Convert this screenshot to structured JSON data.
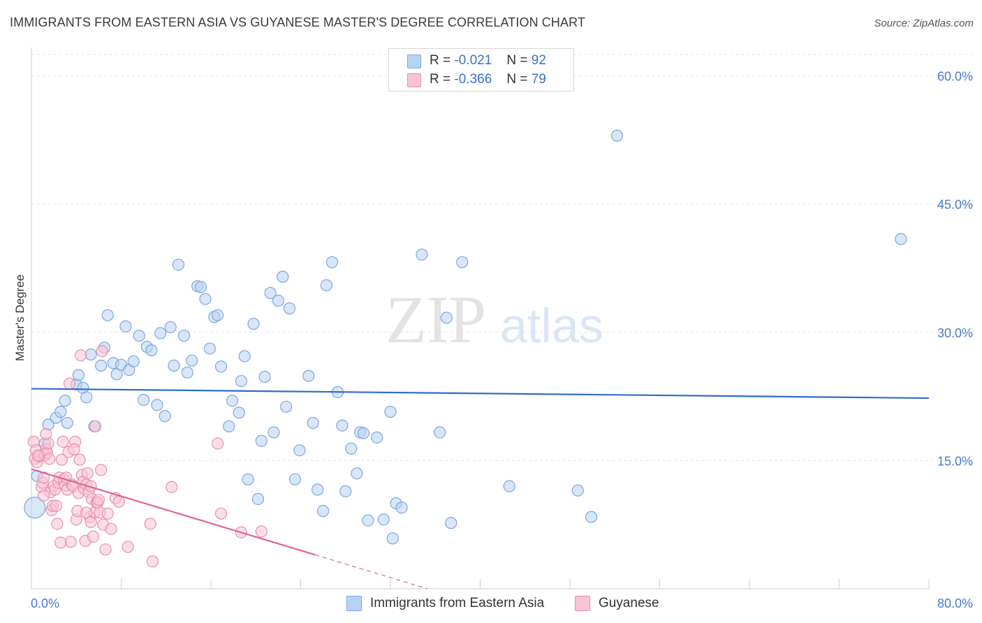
{
  "title": "IMMIGRANTS FROM EASTERN ASIA VS GUYANESE MASTER'S DEGREE CORRELATION CHART",
  "source": "Source: ZipAtlas.com",
  "watermark": {
    "zip": "ZIP",
    "atlas": "atlas"
  },
  "legend": {
    "rows": [
      {
        "r_label": "R =",
        "r_value": "-0.021",
        "n_label": "N =",
        "n_value": "92"
      },
      {
        "r_label": "R =",
        "r_value": "-0.366",
        "n_label": "N =",
        "n_value": "79"
      }
    ]
  },
  "bottom_legend": [
    "Immigrants from Eastern Asia",
    "Guyanese"
  ],
  "colors": {
    "blue_fill": "#b8d2f3",
    "blue_stroke": "#7ea7e0",
    "blue_line": "#2f6cc9",
    "pink_fill": "#f7c4d5",
    "pink_stroke": "#ea8fae",
    "pink_line": "#e0649a",
    "axis_text": "#4a7bd0",
    "grid": "#e6e6e6"
  },
  "chart_data": {
    "type": "scatter",
    "title": "IMMIGRANTS FROM EASTERN ASIA VS GUYANESE MASTER'S DEGREE CORRELATION CHART",
    "xlabel": "",
    "ylabel": "Master's Degree",
    "xlim": [
      0,
      80
    ],
    "ylim": [
      0,
      62.5
    ],
    "y_ticks": [
      15,
      30,
      45,
      60
    ],
    "y_tick_labels": [
      "15.0%",
      "30.0%",
      "45.0%",
      "60.0%"
    ],
    "x_tick_labels": [
      "0.0%",
      "80.0%"
    ],
    "grid": "horizontal dashed",
    "legend_position": "top-center",
    "series": [
      {
        "name": "Immigrants from Eastern Asia",
        "r": -0.021,
        "n": 92,
        "trend": {
          "x": [
            0,
            80
          ],
          "y": [
            23.4,
            22.3
          ],
          "solid_until": 80
        },
        "points": [
          [
            0.3,
            9.5
          ],
          [
            0.5,
            13.2
          ],
          [
            1.2,
            17.0
          ],
          [
            1.5,
            19.2
          ],
          [
            2.2,
            20.0
          ],
          [
            2.6,
            20.7
          ],
          [
            3.0,
            22.0
          ],
          [
            3.2,
            19.4
          ],
          [
            4.0,
            23.9
          ],
          [
            4.2,
            25.0
          ],
          [
            4.6,
            23.5
          ],
          [
            4.9,
            22.4
          ],
          [
            5.3,
            27.4
          ],
          [
            5.6,
            19.0
          ],
          [
            6.2,
            26.1
          ],
          [
            6.5,
            28.2
          ],
          [
            6.8,
            32.0
          ],
          [
            7.3,
            26.4
          ],
          [
            7.6,
            25.1
          ],
          [
            8.0,
            26.2
          ],
          [
            8.4,
            30.7
          ],
          [
            8.7,
            25.6
          ],
          [
            9.1,
            26.6
          ],
          [
            9.6,
            29.6
          ],
          [
            10.0,
            22.1
          ],
          [
            10.3,
            28.3
          ],
          [
            10.7,
            27.9
          ],
          [
            11.2,
            21.5
          ],
          [
            11.5,
            29.9
          ],
          [
            11.9,
            20.2
          ],
          [
            12.4,
            30.6
          ],
          [
            12.7,
            26.1
          ],
          [
            13.1,
            37.9
          ],
          [
            13.6,
            29.6
          ],
          [
            13.9,
            25.3
          ],
          [
            14.3,
            26.7
          ],
          [
            14.8,
            35.4
          ],
          [
            15.1,
            35.3
          ],
          [
            15.5,
            33.9
          ],
          [
            15.9,
            28.1
          ],
          [
            16.3,
            31.8
          ],
          [
            16.6,
            32.0
          ],
          [
            16.9,
            26.0
          ],
          [
            17.6,
            19.0
          ],
          [
            17.9,
            22.0
          ],
          [
            18.5,
            20.6
          ],
          [
            18.7,
            24.3
          ],
          [
            19.0,
            27.2
          ],
          [
            19.3,
            12.8
          ],
          [
            19.8,
            31.0
          ],
          [
            20.2,
            10.5
          ],
          [
            20.5,
            17.3
          ],
          [
            20.8,
            24.8
          ],
          [
            21.3,
            34.6
          ],
          [
            21.6,
            18.3
          ],
          [
            22.0,
            33.7
          ],
          [
            22.4,
            36.5
          ],
          [
            22.7,
            21.3
          ],
          [
            23.0,
            32.8
          ],
          [
            23.5,
            12.8
          ],
          [
            23.9,
            16.2
          ],
          [
            24.7,
            24.9
          ],
          [
            25.1,
            19.4
          ],
          [
            25.5,
            11.6
          ],
          [
            26.0,
            9.1
          ],
          [
            26.3,
            35.5
          ],
          [
            26.8,
            38.2
          ],
          [
            27.3,
            23.0
          ],
          [
            27.7,
            19.1
          ],
          [
            28.0,
            11.4
          ],
          [
            28.5,
            16.4
          ],
          [
            29.0,
            13.5
          ],
          [
            29.3,
            18.3
          ],
          [
            29.6,
            18.2
          ],
          [
            30.0,
            8.0
          ],
          [
            30.8,
            17.7
          ],
          [
            31.4,
            8.1
          ],
          [
            32.0,
            20.7
          ],
          [
            32.2,
            5.9
          ],
          [
            32.5,
            10.0
          ],
          [
            33.0,
            9.5
          ],
          [
            34.8,
            39.1
          ],
          [
            36.4,
            18.3
          ],
          [
            37.0,
            31.7
          ],
          [
            37.4,
            7.7
          ],
          [
            38.4,
            38.2
          ],
          [
            42.6,
            12.0
          ],
          [
            48.7,
            11.5
          ],
          [
            49.9,
            8.4
          ],
          [
            52.2,
            53.0
          ],
          [
            77.5,
            40.9
          ]
        ]
      },
      {
        "name": "Guyanese",
        "r": -0.366,
        "n": 79,
        "trend": {
          "x": [
            0,
            35.3
          ],
          "y": [
            14.0,
            0
          ],
          "solid_until": 25.3
        },
        "points": [
          [
            0.2,
            17.2
          ],
          [
            0.3,
            15.2
          ],
          [
            0.4,
            16.2
          ],
          [
            0.5,
            14.8
          ],
          [
            0.7,
            15.5
          ],
          [
            0.9,
            11.9
          ],
          [
            1.0,
            12.4
          ],
          [
            1.1,
            13.0
          ],
          [
            1.2,
            15.6
          ],
          [
            1.3,
            16.3
          ],
          [
            1.4,
            15.9
          ],
          [
            1.5,
            17.0
          ],
          [
            1.6,
            15.2
          ],
          [
            1.7,
            11.3
          ],
          [
            1.8,
            9.2
          ],
          [
            1.9,
            9.7
          ],
          [
            2.0,
            12.0
          ],
          [
            2.1,
            11.6
          ],
          [
            2.3,
            7.6
          ],
          [
            2.4,
            12.4
          ],
          [
            2.5,
            13.0
          ],
          [
            2.7,
            15.1
          ],
          [
            2.8,
            17.2
          ],
          [
            2.9,
            12.8
          ],
          [
            3.0,
            12.1
          ],
          [
            3.1,
            13.0
          ],
          [
            3.2,
            11.6
          ],
          [
            3.3,
            16.0
          ],
          [
            3.4,
            24.0
          ],
          [
            3.5,
            5.5
          ],
          [
            3.6,
            12.2
          ],
          [
            3.7,
            12.0
          ],
          [
            3.9,
            17.2
          ],
          [
            4.0,
            8.1
          ],
          [
            4.1,
            9.1
          ],
          [
            4.2,
            11.2
          ],
          [
            4.3,
            15.1
          ],
          [
            4.4,
            27.3
          ],
          [
            4.5,
            13.3
          ],
          [
            4.6,
            12.5
          ],
          [
            4.7,
            11.7
          ],
          [
            4.8,
            5.6
          ],
          [
            4.9,
            12.2
          ],
          [
            5.0,
            13.5
          ],
          [
            5.1,
            11.3
          ],
          [
            5.2,
            8.4
          ],
          [
            5.3,
            12.0
          ],
          [
            5.4,
            10.5
          ],
          [
            5.5,
            6.1
          ],
          [
            5.6,
            8.9
          ],
          [
            5.7,
            19.0
          ],
          [
            5.8,
            10.1
          ],
          [
            5.9,
            10.1
          ],
          [
            6.0,
            10.4
          ],
          [
            6.1,
            8.9
          ],
          [
            6.2,
            13.9
          ],
          [
            6.3,
            27.8
          ],
          [
            6.4,
            7.5
          ],
          [
            6.6,
            4.6
          ],
          [
            6.8,
            8.8
          ],
          [
            7.1,
            7.0
          ],
          [
            7.5,
            10.6
          ],
          [
            7.8,
            10.2
          ],
          [
            8.6,
            4.9
          ],
          [
            10.6,
            7.6
          ],
          [
            10.8,
            3.2
          ],
          [
            12.5,
            11.9
          ],
          [
            16.6,
            17.0
          ],
          [
            16.9,
            8.8
          ],
          [
            18.7,
            6.6
          ],
          [
            20.5,
            6.7
          ],
          [
            0.6,
            15.6
          ],
          [
            1.3,
            18.1
          ],
          [
            2.2,
            9.7
          ],
          [
            3.8,
            16.3
          ],
          [
            4.9,
            8.9
          ],
          [
            2.6,
            5.4
          ],
          [
            5.3,
            7.8
          ],
          [
            1.1,
            10.9
          ]
        ]
      }
    ]
  }
}
